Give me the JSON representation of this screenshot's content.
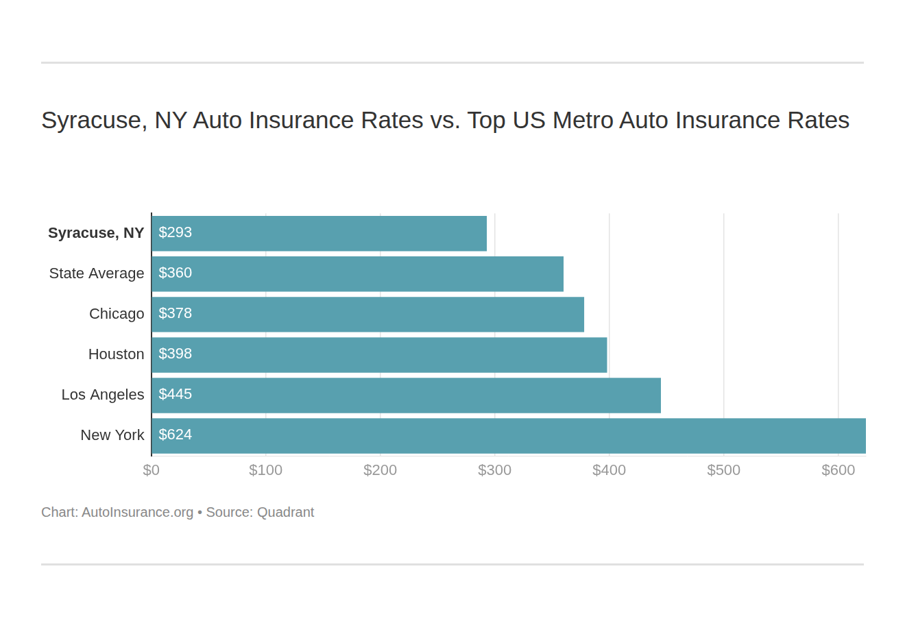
{
  "chart_data": {
    "type": "bar",
    "orientation": "horizontal",
    "title": "Syracuse, NY Auto Insurance Rates vs. Top US Metro Auto Insurance Rates",
    "note": "Chart: AutoInsurance.org • Source: Quadrant",
    "categories": [
      "Syracuse, NY",
      "State Average",
      "Chicago",
      "Houston",
      "Los Angeles",
      "New York"
    ],
    "values": [
      293,
      360,
      378,
      398,
      445,
      624
    ],
    "value_labels": [
      "$293",
      "$360",
      "$378",
      "$398",
      "$445",
      "$624"
    ],
    "data_labels": true,
    "color": "#58a0af",
    "xlim": [
      0,
      624
    ],
    "xticks": [
      {
        "value": 0,
        "label": "$0"
      },
      {
        "value": 100,
        "label": "$100"
      },
      {
        "value": 200,
        "label": "$200"
      },
      {
        "value": 300,
        "label": "$300"
      },
      {
        "value": 400,
        "label": "$400"
      },
      {
        "value": 500,
        "label": "$500"
      },
      {
        "value": 600,
        "label": "$600"
      }
    ],
    "grid": true
  }
}
